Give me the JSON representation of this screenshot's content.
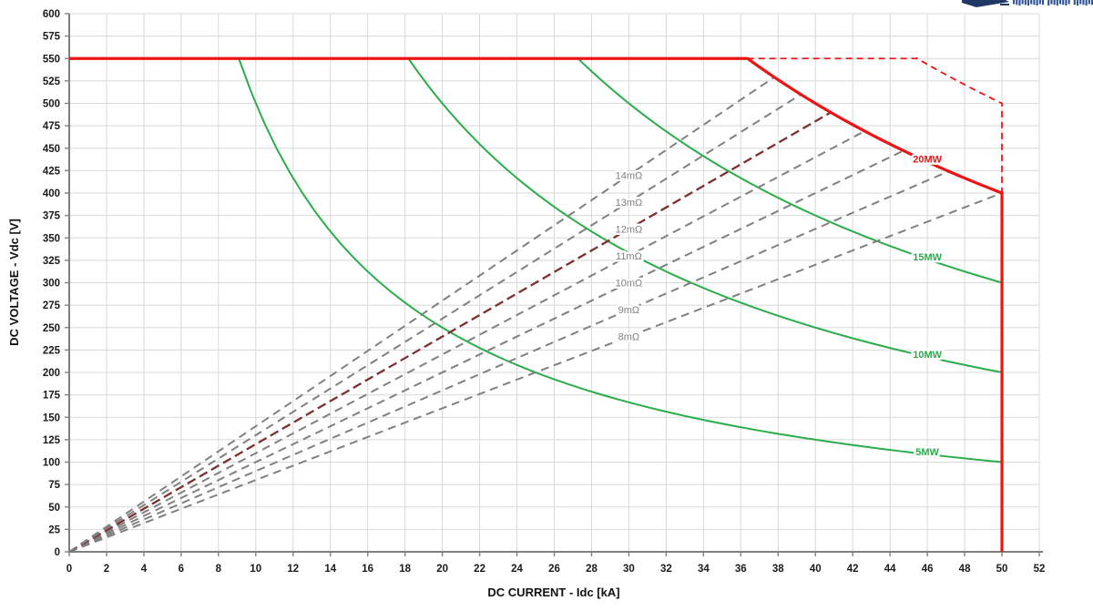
{
  "logo": {
    "swoosh_color": "#1F3864",
    "text_color": "#2F5496",
    "visible_text_legible": false
  },
  "chart_data": {
    "type": "line",
    "title": "",
    "xlabel": "DC CURRENT - Idc [kA]",
    "ylabel": "DC VOLTAGE - Vdc [V]",
    "xlim": [
      0,
      52
    ],
    "ylim": [
      0,
      600
    ],
    "x_ticks": [
      0,
      2,
      4,
      6,
      8,
      10,
      12,
      14,
      16,
      18,
      20,
      22,
      24,
      26,
      28,
      30,
      32,
      34,
      36,
      38,
      40,
      42,
      44,
      46,
      48,
      50,
      52
    ],
    "y_ticks": [
      0,
      25,
      50,
      75,
      100,
      125,
      150,
      175,
      200,
      225,
      250,
      275,
      300,
      325,
      350,
      375,
      400,
      425,
      450,
      475,
      500,
      525,
      550,
      575,
      600
    ],
    "grid": true,
    "colors": {
      "grid": "#D8D8D8",
      "axis": "#7F7F7F",
      "envelope_red": "#EE1414",
      "power_green": "#2BAD4C",
      "resistance_gray": "#808080",
      "resistance_highlight": "#7E3030",
      "label_gray": "#7F7F7F"
    },
    "envelope": {
      "label": "20MW",
      "p_MW": 20,
      "v_max_V": 550,
      "i_max_kA": 50,
      "flat_from_i_kA": 0,
      "flat_to_i_kA": 36.36,
      "hyperbola_end": {
        "i_kA": 50,
        "v_V": 400
      },
      "vertical_drop_to_v_V": 0,
      "style": "solid"
    },
    "overload_envelope": {
      "p_MW": 25,
      "flat_v_V": 550,
      "flat_from_i_kA": 36.36,
      "knee_i_kA": 45.45,
      "end_point": {
        "i_kA": 50,
        "v_V": 500
      },
      "vertical_drop_to_v_V": 400,
      "style": "dashed"
    },
    "power_curves": [
      {
        "label": "5MW",
        "p_MW": 5,
        "start": {
          "i_kA": 9.09,
          "v_V": 550
        },
        "end": {
          "i_kA": 50,
          "v_V": 100
        }
      },
      {
        "label": "10MW",
        "p_MW": 10,
        "start": {
          "i_kA": 18.18,
          "v_V": 550
        },
        "end": {
          "i_kA": 50,
          "v_V": 200
        }
      },
      {
        "label": "15MW",
        "p_MW": 15,
        "start": {
          "i_kA": 27.27,
          "v_V": 550
        },
        "end": {
          "i_kA": 50,
          "v_V": 300
        }
      }
    ],
    "resistance_lines": [
      {
        "label": "8mΩ",
        "r_mOhm": 8,
        "highlighted": false,
        "end_on_20MW_curve": {
          "i_kA": 50.0,
          "v_V": 400
        }
      },
      {
        "label": "9mΩ",
        "r_mOhm": 9,
        "highlighted": false,
        "end_on_20MW_curve": {
          "i_kA": 47.14,
          "v_V": 424
        }
      },
      {
        "label": "10mΩ",
        "r_mOhm": 10,
        "highlighted": false,
        "end_on_20MW_curve": {
          "i_kA": 44.72,
          "v_V": 447
        }
      },
      {
        "label": "11mΩ",
        "r_mOhm": 11,
        "highlighted": false,
        "end_on_20MW_curve": {
          "i_kA": 42.64,
          "v_V": 469
        }
      },
      {
        "label": "12mΩ",
        "r_mOhm": 12,
        "highlighted": true,
        "end_on_20MW_curve": {
          "i_kA": 40.82,
          "v_V": 490
        }
      },
      {
        "label": "13mΩ",
        "r_mOhm": 13,
        "highlighted": false,
        "end_on_20MW_curve": {
          "i_kA": 39.22,
          "v_V": 510
        }
      },
      {
        "label": "14mΩ",
        "r_mOhm": 14,
        "highlighted": false,
        "end_on_20MW_curve": {
          "i_kA": 37.8,
          "v_V": 529
        }
      }
    ],
    "label_layout": {
      "mohm_label_at_i_kA": 30,
      "mw_label_at_i_kA": 46,
      "legend_position": "none"
    }
  }
}
